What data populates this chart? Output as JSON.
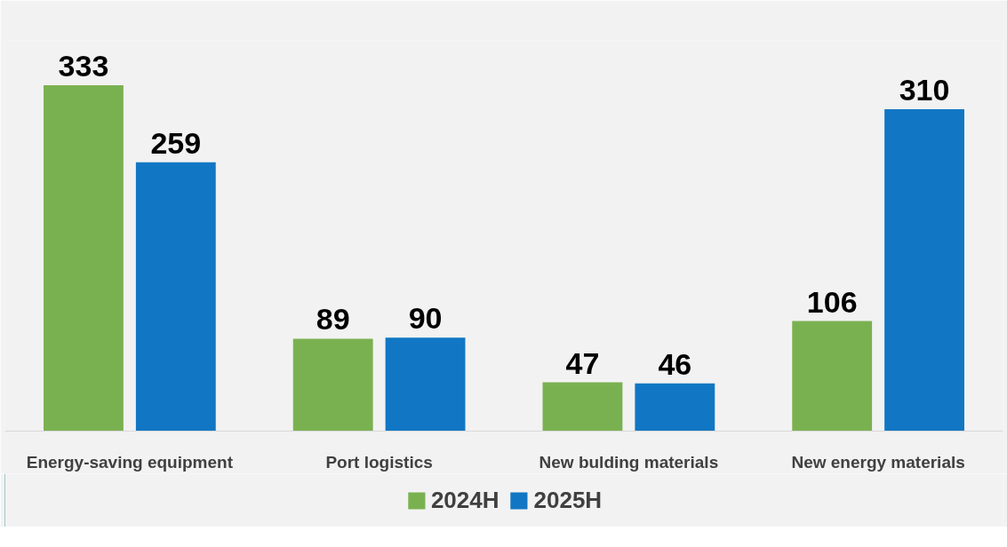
{
  "chart_data": {
    "type": "bar",
    "categories": [
      "Energy-saving equipment",
      "Port logistics",
      "New bulding materials",
      "New energy materials"
    ],
    "series": [
      {
        "name": "2024H",
        "color": "#7ab150",
        "values": [
          333,
          89,
          47,
          106
        ]
      },
      {
        "name": "2025H",
        "color": "#1177c4",
        "values": [
          259,
          90,
          46,
          310
        ]
      }
    ],
    "data_labels": true,
    "legend": "bottom",
    "grid": false
  }
}
